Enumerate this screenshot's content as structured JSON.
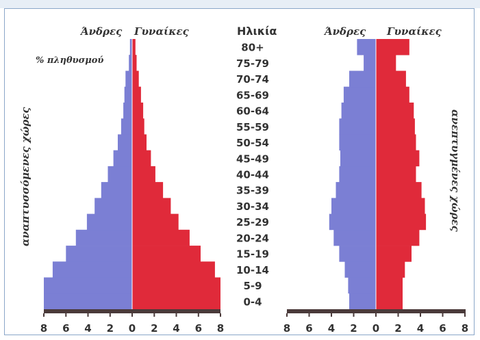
{
  "chart_data": [
    {
      "type": "bar",
      "orientation": "population-pyramid",
      "side_label": "αναπτυσσόμενες χώρες",
      "unit_label": "% πληθυσμού",
      "legend": {
        "left": "Άνδρες",
        "right": "Γυναίκες"
      },
      "age_header": "Ηλικία",
      "age_groups": [
        "0-4",
        "5-9",
        "10-14",
        "15-19",
        "20-24",
        "25-29",
        "30-34",
        "35-39",
        "40-44",
        "45-49",
        "50-54",
        "55-59",
        "60-64",
        "65-69",
        "70-74",
        "75-79",
        "80+"
      ],
      "xlim": [
        0,
        8
      ],
      "x_ticks": [
        "8",
        "6",
        "4",
        "2",
        "0",
        "2",
        "4",
        "6",
        "8"
      ],
      "series": [
        {
          "name": "Άνδρες",
          "color": "#7b7fd4",
          "values": [
            8,
            8,
            7.2,
            6,
            5.1,
            4.1,
            3.4,
            2.8,
            2.2,
            1.7,
            1.3,
            1.0,
            0.8,
            0.7,
            0.6,
            0.3,
            0.2
          ]
        },
        {
          "name": "Γυναίκες",
          "color": "#e02a3a",
          "values": [
            8,
            8,
            7.5,
            6.2,
            5.2,
            4.2,
            3.5,
            2.8,
            2.1,
            1.7,
            1.3,
            1.1,
            1.0,
            0.8,
            0.6,
            0.4,
            0.3
          ]
        }
      ]
    },
    {
      "type": "bar",
      "orientation": "population-pyramid",
      "side_label": "ανεπτυγμένες χώρες",
      "legend": {
        "left": "Άνδρες",
        "right": "Γυναίκες"
      },
      "age_groups": [
        "0-4",
        "5-9",
        "10-14",
        "15-19",
        "20-24",
        "25-29",
        "30-34",
        "35-39",
        "40-44",
        "45-49",
        "50-54",
        "55-59",
        "60-64",
        "65-69",
        "70-74",
        "75-79",
        "80+"
      ],
      "xlim": [
        0,
        8
      ],
      "x_ticks": [
        "8",
        "6",
        "4",
        "2",
        "0",
        "2",
        "4",
        "6",
        "8"
      ],
      "series": [
        {
          "name": "Άνδρες",
          "color": "#7b7fd4",
          "values": [
            2.4,
            2.5,
            2.8,
            3.3,
            3.8,
            4.2,
            4.0,
            3.6,
            3.3,
            3.2,
            3.3,
            3.3,
            3.1,
            2.9,
            2.4,
            1.1,
            1.7
          ]
        },
        {
          "name": "Γυναίκες",
          "color": "#e02a3a",
          "values": [
            2.4,
            2.4,
            2.6,
            3.2,
            3.9,
            4.5,
            4.4,
            4.1,
            3.6,
            3.9,
            3.6,
            3.5,
            3.4,
            3.0,
            2.7,
            1.8,
            3.0
          ]
        }
      ]
    }
  ]
}
